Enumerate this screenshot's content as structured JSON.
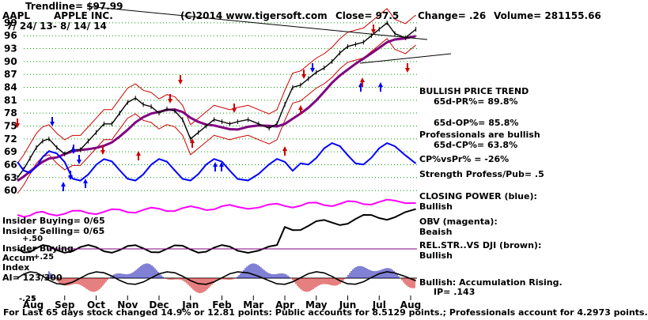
{
  "header": {
    "trendline": "Trendline= $97.99",
    "ticker": "AAPL",
    "company": "APPLE INC.",
    "copyright": "(C)2014 www.tigersoft.com",
    "close": "Close=  97.5",
    "change": "Change= .26",
    "volume": "Volume= 281155.66",
    "date_range": "7/ 24/ 13- 8/ 14/ 14"
  },
  "right_panel": {
    "trend_title": "BULLISH PRICE TREND",
    "pr_pct": "65d-PR%= 89.8%",
    "op_pct": "65d-OP%= 85.8%",
    "professionals": "Professionals are bullish",
    "cp_pct": "65d-CP%= 63.8%",
    "cp_vs_pr": "CP%vsPr% = -26%",
    "strength": "Strength Profess/Pub= .5",
    "closing_power": "CLOSING POWER (blue):",
    "closing_power_state": "Bullish",
    "obv": "OBV (magenta):",
    "obv_state": "Beaish",
    "relstr": "REL.STR..VS DJI (brown):",
    "relstr_state": "Bullish",
    "accum": "Bullish: Accumulation Rising.",
    "ip": "IP=  .143"
  },
  "left_panel": {
    "insider_buying": "Insider Buying= 0/65",
    "insider_selling": "Insider Selling= 0/65",
    "plus50": "+.50",
    "insider_buying2": "Insider Buying",
    "accum_label": "Accum",
    "plus25": "+.25",
    "index_label": "Index",
    "ai": "AI= 123/300",
    "minus25": "-.25"
  },
  "footer": "For Last 65 days stock changed  14.9% or  12.81 points:  Public accounts for  8.5129 points.;  Professionals account for  4.2973 points.",
  "colors": {
    "price": "#000000",
    "band": "#cc0000",
    "ma": "#800080",
    "closing_power": "#0000ff",
    "obv": "#ff00ff",
    "accum_pos": "#0000aa",
    "accum_neg": "#cc0000",
    "grid": "#009900"
  },
  "chart_data": {
    "type": "line",
    "x_ticks": [
      "Aug",
      "Sep",
      "Oct",
      "Nov",
      "Dec",
      "Jan",
      "Feb",
      "Mar",
      "Apr",
      "May",
      "Jun",
      "Jul",
      "Aug"
    ],
    "y_ticks": [
      60,
      63,
      66,
      69,
      72,
      75,
      78,
      81,
      84,
      87,
      90,
      93,
      96,
      99
    ],
    "ylim": [
      58,
      101
    ],
    "series": [
      {
        "name": "AAPL",
        "points": [
          [
            "Aug",
            63
          ],
          [
            "Aug",
            65
          ],
          [
            "Aug",
            67.5
          ],
          [
            "Aug",
            70
          ],
          [
            "Aug",
            71.5
          ],
          [
            "Sep",
            72
          ],
          [
            "Sep",
            70
          ],
          [
            "Sep",
            68.5
          ],
          [
            "Sep",
            69.5
          ],
          [
            "Oct",
            69.5
          ],
          [
            "Oct",
            71.5
          ],
          [
            "Oct",
            73.5
          ],
          [
            "Oct",
            75.5
          ],
          [
            "Nov",
            75.5
          ],
          [
            "Nov",
            78
          ],
          [
            "Nov",
            80.5
          ],
          [
            "Nov",
            81.5
          ],
          [
            "Dec",
            80
          ],
          [
            "Dec",
            79.5
          ],
          [
            "Dec",
            78
          ],
          [
            "Dec",
            79
          ],
          [
            "Jan",
            78.5
          ],
          [
            "Jan",
            76.5
          ],
          [
            "Jan",
            72
          ],
          [
            "Jan",
            73.5
          ],
          [
            "Feb",
            75
          ],
          [
            "Feb",
            76.5
          ],
          [
            "Feb",
            76
          ],
          [
            "Feb",
            75.5
          ],
          [
            "Mar",
            76
          ],
          [
            "Mar",
            76.5
          ],
          [
            "Mar",
            75.5
          ],
          [
            "Apr",
            74.5
          ],
          [
            "Apr",
            75.5
          ],
          [
            "Apr",
            80
          ],
          [
            "Apr",
            84
          ],
          [
            "May",
            84.5
          ],
          [
            "May",
            86
          ],
          [
            "May",
            87.5
          ],
          [
            "May",
            88.5
          ],
          [
            "Jun",
            90
          ],
          [
            "Jun",
            92
          ],
          [
            "Jun",
            93.5
          ],
          [
            "Jun",
            94
          ],
          [
            "Jul",
            94.5
          ],
          [
            "Jul",
            96
          ],
          [
            "Jul",
            97.5
          ],
          [
            "Jul",
            99
          ],
          [
            "Aug",
            96.5
          ],
          [
            "Aug",
            95.5
          ],
          [
            "Aug",
            97.5
          ]
        ]
      }
    ]
  }
}
